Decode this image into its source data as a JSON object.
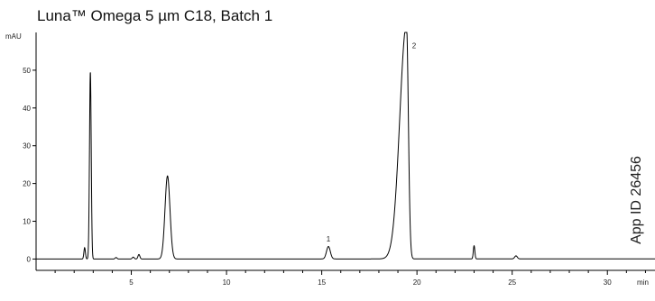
{
  "chart_data": {
    "type": "line",
    "title": "Luna™ Omega 5 µm C18, Batch 1",
    "xlabel": "min",
    "ylabel": "mAU",
    "xlim": [
      0,
      32.5
    ],
    "ylim": [
      -3,
      60
    ],
    "xticks": [
      5,
      10,
      15,
      20,
      25,
      30
    ],
    "yticks": [
      0,
      10,
      20,
      30,
      40,
      50
    ],
    "grid": false,
    "peaks": [
      {
        "t": 2.55,
        "height": 3.0,
        "width": 0.04
      },
      {
        "t": 2.85,
        "height": 49.6,
        "width": 0.045
      },
      {
        "t": 4.2,
        "height": 0.4,
        "width": 0.05
      },
      {
        "t": 5.1,
        "height": 0.5,
        "width": 0.05
      },
      {
        "t": 5.4,
        "height": 1.2,
        "width": 0.05
      },
      {
        "t": 6.9,
        "height": 22.0,
        "width": 0.13
      },
      {
        "t": 15.35,
        "height": 3.3,
        "width": 0.1
      },
      {
        "t": 19.45,
        "height": 62.0,
        "width": 0.11
      },
      {
        "t": 23.0,
        "height": 3.5,
        "width": 0.04
      },
      {
        "t": 25.2,
        "height": 0.8,
        "width": 0.07
      }
    ],
    "peak_labels": [
      {
        "label": "1",
        "t": 15.35,
        "y": 4.6
      },
      {
        "label": "2",
        "t": 19.85,
        "y": 55.8
      }
    ]
  },
  "annotation": {
    "app_id": "App ID 26456"
  }
}
